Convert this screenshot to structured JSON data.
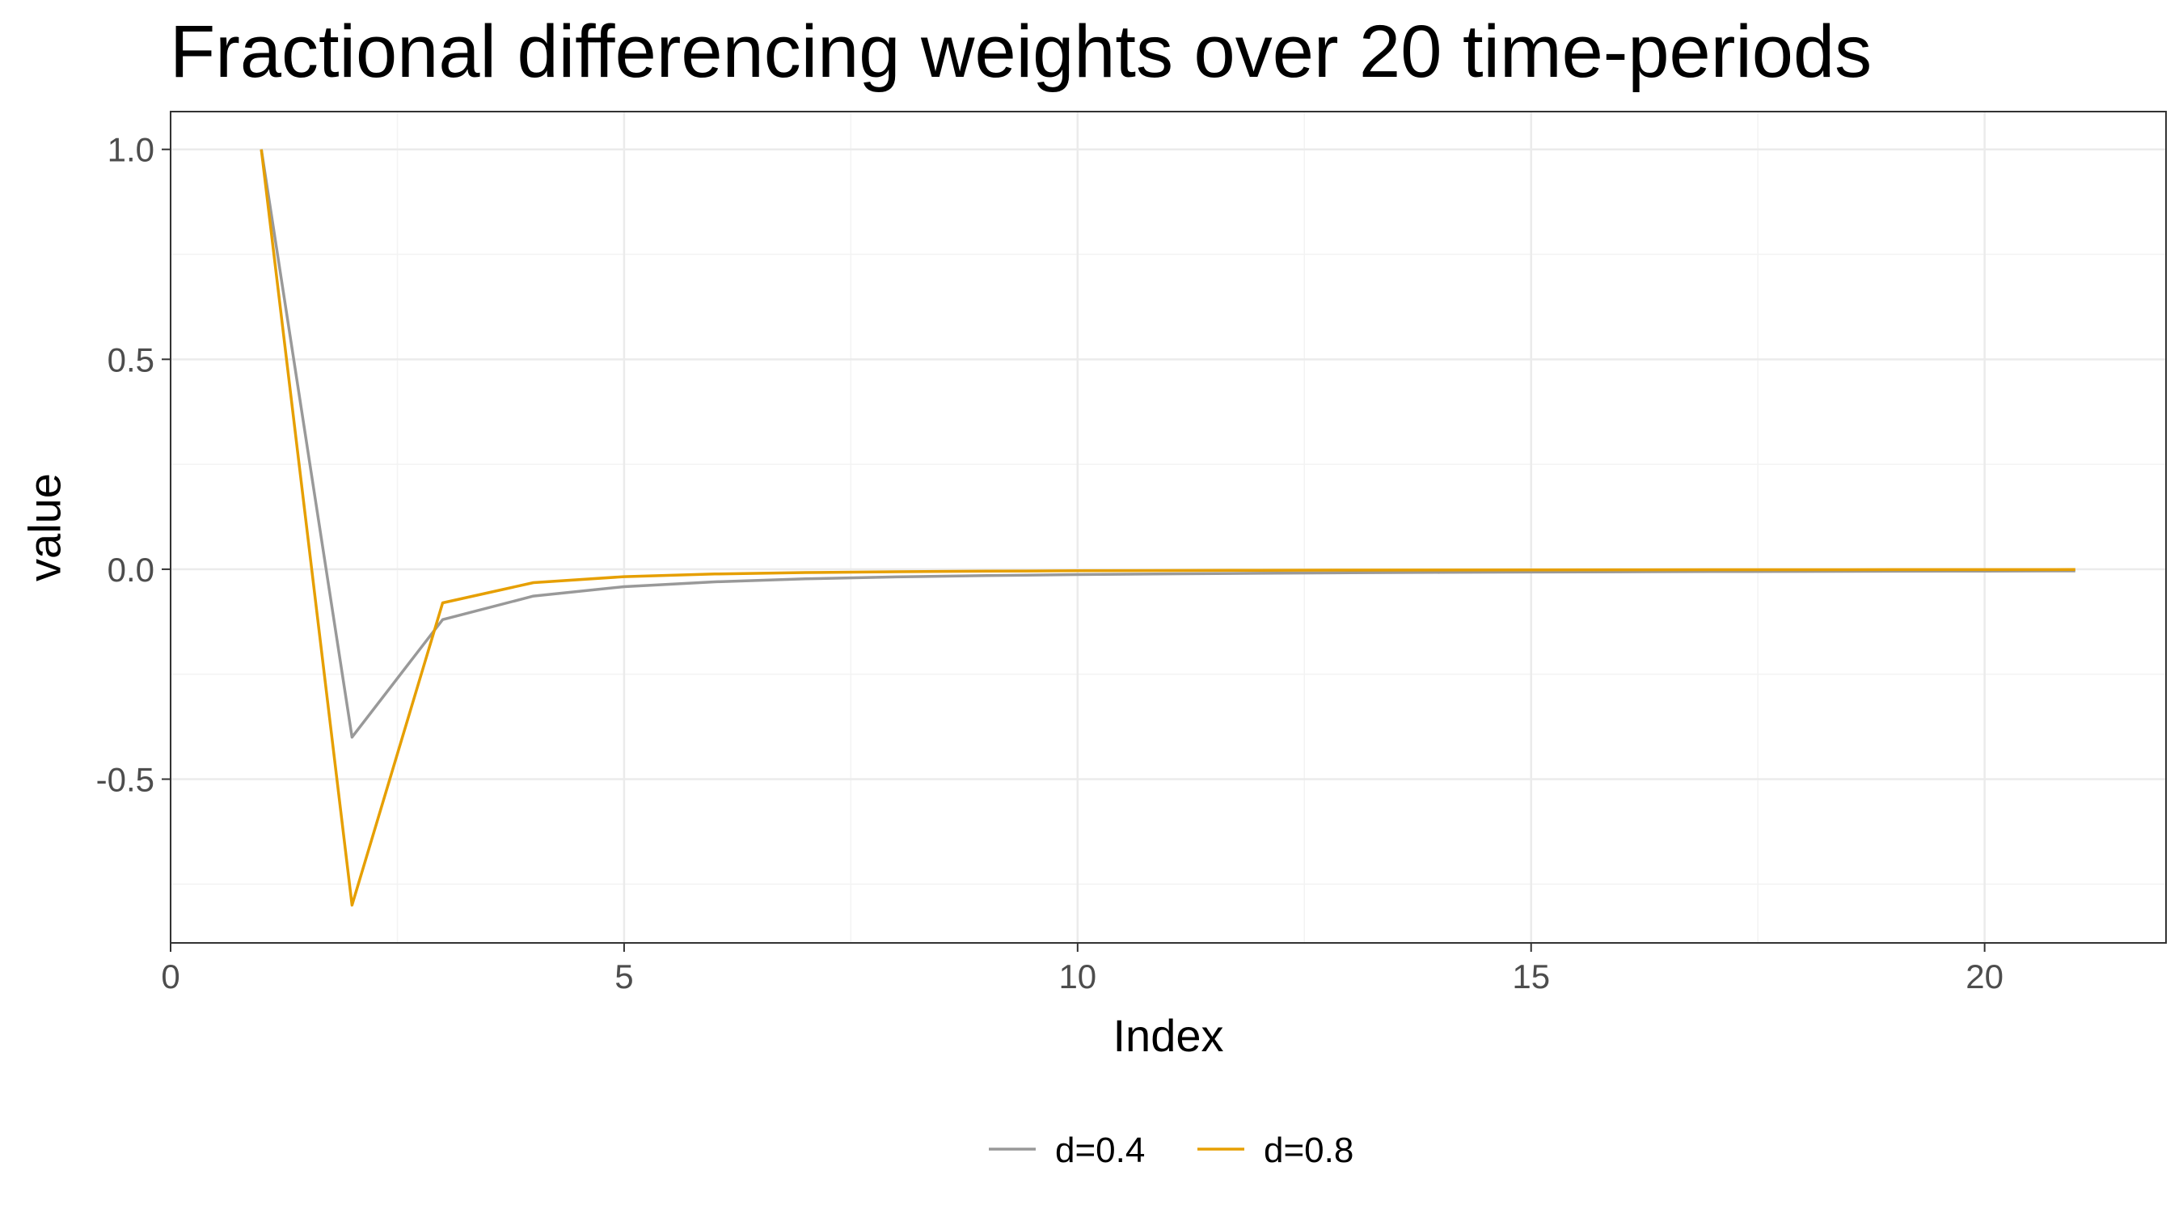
{
  "chart_data": {
    "type": "line",
    "title": "Fractional differencing weights over 20 time-periods",
    "xlabel": "Index",
    "ylabel": "value",
    "xlim": [
      0,
      22
    ],
    "ylim": [
      -0.89,
      1.09
    ],
    "x_ticks": [
      0,
      5,
      10,
      15,
      20
    ],
    "x_tick_labels": [
      "0",
      "5",
      "10",
      "15",
      "20"
    ],
    "y_ticks": [
      -0.5,
      0.0,
      0.5,
      1.0
    ],
    "y_tick_labels": [
      "-0.5",
      "0.0",
      "0.5",
      "1.0"
    ],
    "grid": true,
    "legend_position": "bottom",
    "x": [
      1,
      2,
      3,
      4,
      5,
      6,
      7,
      8,
      9,
      10,
      11,
      12,
      13,
      14,
      15,
      16,
      17,
      18,
      19,
      20,
      21
    ],
    "series": [
      {
        "name": "d=0.4",
        "color": "#999999",
        "values": [
          1.0,
          -0.4,
          -0.12,
          -0.064,
          -0.0416,
          -0.02995,
          -0.0229,
          -0.01832,
          -0.01511,
          -0.01276,
          -0.01097,
          -0.00957,
          -0.00844,
          -0.00753,
          -0.00677,
          -0.00613,
          -0.00559,
          -0.00513,
          -0.00473,
          -0.00438,
          -0.00407
        ]
      },
      {
        "name": "d=0.8",
        "color": "#e69f00",
        "values": [
          1.0,
          -0.8,
          -0.08,
          -0.032,
          -0.0176,
          -0.01126,
          -0.00788,
          -0.00585,
          -0.00453,
          -0.00362,
          -0.00297,
          -0.00248,
          -0.0021,
          -0.0018,
          -0.00157,
          -0.00137,
          -0.00121,
          -0.00108,
          -0.00097,
          -0.00087,
          -0.00079
        ]
      }
    ]
  }
}
